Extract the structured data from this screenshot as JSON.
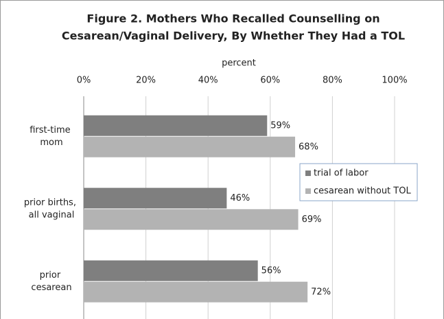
{
  "chart_data": {
    "type": "bar",
    "orientation": "horizontal",
    "title": [
      "Figure 2. Mothers Who Recalled Counselling on",
      "Cesarean/Vaginal Delivery, By Whether They Had a TOL"
    ],
    "x_label": "percent",
    "categories": [
      "first-time mom",
      "prior births, all vaginal",
      "prior cesarean"
    ],
    "series": [
      {
        "name": "trial of labor",
        "color": "#7f7f7f",
        "values": [
          59,
          46,
          56
        ],
        "value_labels": [
          "59%",
          "46%",
          "56%"
        ]
      },
      {
        "name": "cesarean without TOL",
        "color": "#b3b3b3",
        "values": [
          68,
          69,
          72
        ],
        "value_labels": [
          "68%",
          "69%",
          "72%"
        ]
      }
    ],
    "xlim": [
      0,
      100
    ],
    "xticks": [
      {
        "value": 0,
        "label": "0%"
      },
      {
        "value": 20,
        "label": "20%"
      },
      {
        "value": 40,
        "label": "40%"
      },
      {
        "value": 60,
        "label": "60%"
      },
      {
        "value": 80,
        "label": "80%"
      },
      {
        "value": 100,
        "label": "100%"
      }
    ],
    "grid": true,
    "legend": "right"
  }
}
